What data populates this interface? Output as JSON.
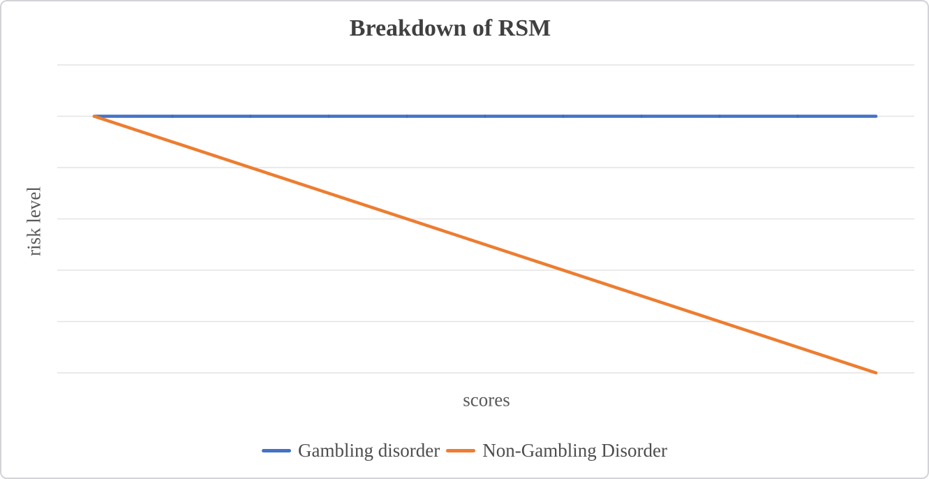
{
  "frame": {
    "background": "#ffffff",
    "border_color": "#d3d3d7"
  },
  "chart_data": {
    "type": "line",
    "title": "Breakdown of RSM",
    "xlabel": "scores",
    "ylabel": "risk level",
    "x": [
      1,
      2,
      3,
      4,
      5,
      6,
      7,
      8,
      9,
      10,
      11
    ],
    "series": [
      {
        "name": "Gambling disorder",
        "color": "#4472C4",
        "values": [
          5,
          5,
          5,
          5,
          5,
          5,
          5,
          5,
          5,
          5,
          5
        ]
      },
      {
        "name": "Non-Gambling Disorder",
        "color": "#ED7D31",
        "values": [
          5,
          4.5,
          4,
          3.5,
          3,
          2.5,
          2,
          1.5,
          1,
          0.5,
          0
        ]
      }
    ],
    "ylim": [
      0,
      6
    ],
    "xlim": [
      1,
      11
    ],
    "axis_tick_labels_visible": false,
    "grid": "horizontal",
    "gridline_count": 7,
    "gridline_color": "#e3e3e3",
    "legend_position": "bottom",
    "title_color": "#404040",
    "axis_title_color": "#595959",
    "legend_text_color": "#4d4d4d"
  }
}
